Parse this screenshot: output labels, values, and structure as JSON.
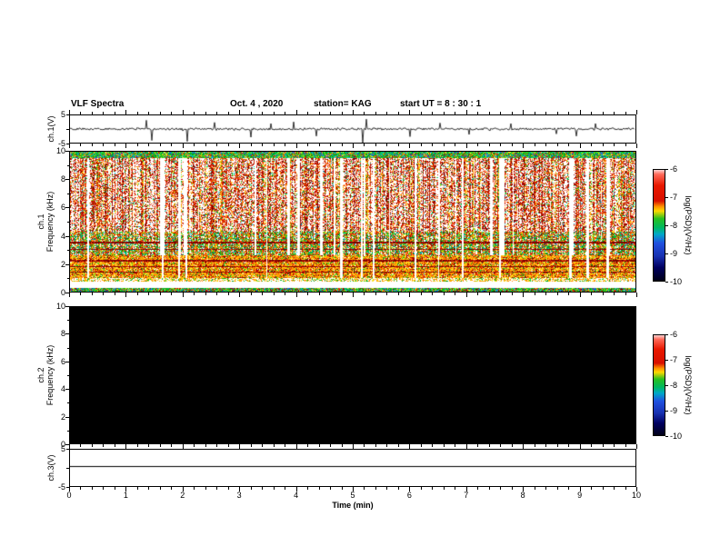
{
  "header": {
    "title": "VLF Spectra",
    "date": "Oct. 4  , 2020",
    "station": "station= KAG",
    "start_ut": "start UT =  8 : 30 : 1"
  },
  "panels": {
    "ch1_wave": {
      "label": "ch.1(V)",
      "yticks": [
        "5",
        "-5"
      ]
    },
    "ch1_spec": {
      "label_channel": "ch.1",
      "label_axis": "Frequency (kHz)",
      "yticks": [
        "10",
        "8",
        "6",
        "4",
        "2",
        "0"
      ]
    },
    "ch2_spec": {
      "label_channel": "ch.2",
      "label_axis": "Frequency (kHz)",
      "yticks": [
        "10",
        "8",
        "6",
        "4",
        "2",
        "0"
      ]
    },
    "ch3_wave": {
      "label": "ch.3(V)",
      "yticks": [
        "5",
        "-5"
      ]
    }
  },
  "xaxis": {
    "label": "Time (min)",
    "ticks": [
      "0",
      "1",
      "2",
      "3",
      "4",
      "5",
      "6",
      "7",
      "8",
      "9",
      "10"
    ]
  },
  "colorbars": [
    {
      "ticks": [
        "-6",
        "-7",
        "-8",
        "-9",
        "-10"
      ],
      "label": "log(PSD)(V²/Hz)",
      "gradient": [
        "#ffd2d2 0%",
        "#ff6a5a 4%",
        "#e81800 14%",
        "#d81000 28%",
        "#ff9000 33%",
        "#ffd800 37%",
        "#28c020 44%",
        "#00b860 52%",
        "#00a8c8 58%",
        "#2050e0 66%",
        "#1830b0 78%",
        "#000060 88%",
        "#000018 100%"
      ]
    },
    {
      "ticks": [
        "-6",
        "-7",
        "-8",
        "-9",
        "-10"
      ],
      "label": "log(PSD)(V²/Hz)",
      "gradient": [
        "#ffd2d2 0%",
        "#ff6a5a 4%",
        "#e81800 14%",
        "#d81000 28%",
        "#ff9000 33%",
        "#ffd800 37%",
        "#28c020 44%",
        "#00b860 52%",
        "#00a8c8 58%",
        "#2050e0 66%",
        "#1830b0 78%",
        "#000060 88%",
        "#000018 100%"
      ]
    }
  ],
  "chart_data": [
    {
      "type": "line",
      "name": "ch.1 voltage vs time",
      "xlabel": "Time (min)",
      "xlim": [
        0,
        10
      ],
      "ylabel": "ch.1(V)",
      "ylim": [
        -5,
        5
      ],
      "description": "Low-amplitude noise around 0 V with sporadic impulsive spikes",
      "spikes": [
        {
          "t": 1.35,
          "a": 3.2
        },
        {
          "t": 1.45,
          "a": -4.2
        },
        {
          "t": 2.08,
          "a": -4.6
        },
        {
          "t": 2.55,
          "a": 2.4
        },
        {
          "t": 3.2,
          "a": -3.0
        },
        {
          "t": 3.55,
          "a": 2.0
        },
        {
          "t": 3.95,
          "a": 2.6
        },
        {
          "t": 4.35,
          "a": -2.6
        },
        {
          "t": 5.18,
          "a": -5.0
        },
        {
          "t": 5.24,
          "a": 3.6
        },
        {
          "t": 6.02,
          "a": -2.8
        },
        {
          "t": 6.55,
          "a": 2.2
        },
        {
          "t": 7.05,
          "a": -2.0
        },
        {
          "t": 7.8,
          "a": 2.0
        },
        {
          "t": 8.6,
          "a": -1.8
        },
        {
          "t": 8.95,
          "a": -2.6
        },
        {
          "t": 9.3,
          "a": 2.0
        }
      ]
    },
    {
      "type": "heatmap",
      "name": "ch.1 VLF spectrogram",
      "xlabel": "Time (min)",
      "xlim": [
        0,
        10
      ],
      "ylabel": "Frequency (kHz)",
      "ylim": [
        0,
        10
      ],
      "zlabel": "log(PSD)(V²/Hz)",
      "zlim": [
        -10,
        -6
      ],
      "legend_position": "right colorbar",
      "bands": [
        {
          "freq_khz": [
            9.6,
            10.0
          ],
          "psd": "≈ -8, continuous green/cyan band"
        },
        {
          "freq_khz": [
            4.3,
            9.6
          ],
          "psd": "≈ -6.5 to -7, dense red vertical striations (sferics) with white dropout columns"
        },
        {
          "freq_khz": [
            2.6,
            4.3
          ],
          "psd": "≈ -7 to -8, mixed red/green patches"
        },
        {
          "freq_khz": [
            1.0,
            2.6
          ],
          "psd": "≈ -6.5 to -7.5, yellow/orange band with dark-red line emissions near 1.4, 1.8 and 2.2 kHz"
        },
        {
          "freq_khz": [
            0.3,
            0.7
          ],
          "psd": "below scale (white)"
        },
        {
          "freq_khz": [
            0.0,
            0.3
          ],
          "psd": "≈ -8, thin green strip"
        }
      ]
    },
    {
      "type": "heatmap",
      "name": "ch.2 VLF spectrogram",
      "xlabel": "Time (min)",
      "xlim": [
        0,
        10
      ],
      "ylabel": "Frequency (kHz)",
      "ylim": [
        0,
        10
      ],
      "zlabel": "log(PSD)(V²/Hz)",
      "zlim": [
        -10,
        -6
      ],
      "bands": [
        {
          "freq_khz": [
            0,
            10
          ],
          "psd": "uniform ≤ -10 over full record (all black, no signal)"
        }
      ]
    },
    {
      "type": "line",
      "name": "ch.3 voltage vs time",
      "xlabel": "Time (min)",
      "xlim": [
        0,
        10
      ],
      "ylabel": "ch.3(V)",
      "ylim": [
        -5,
        5
      ],
      "value": 0.5,
      "description": "Constant flat trace near 0.5 V"
    }
  ]
}
